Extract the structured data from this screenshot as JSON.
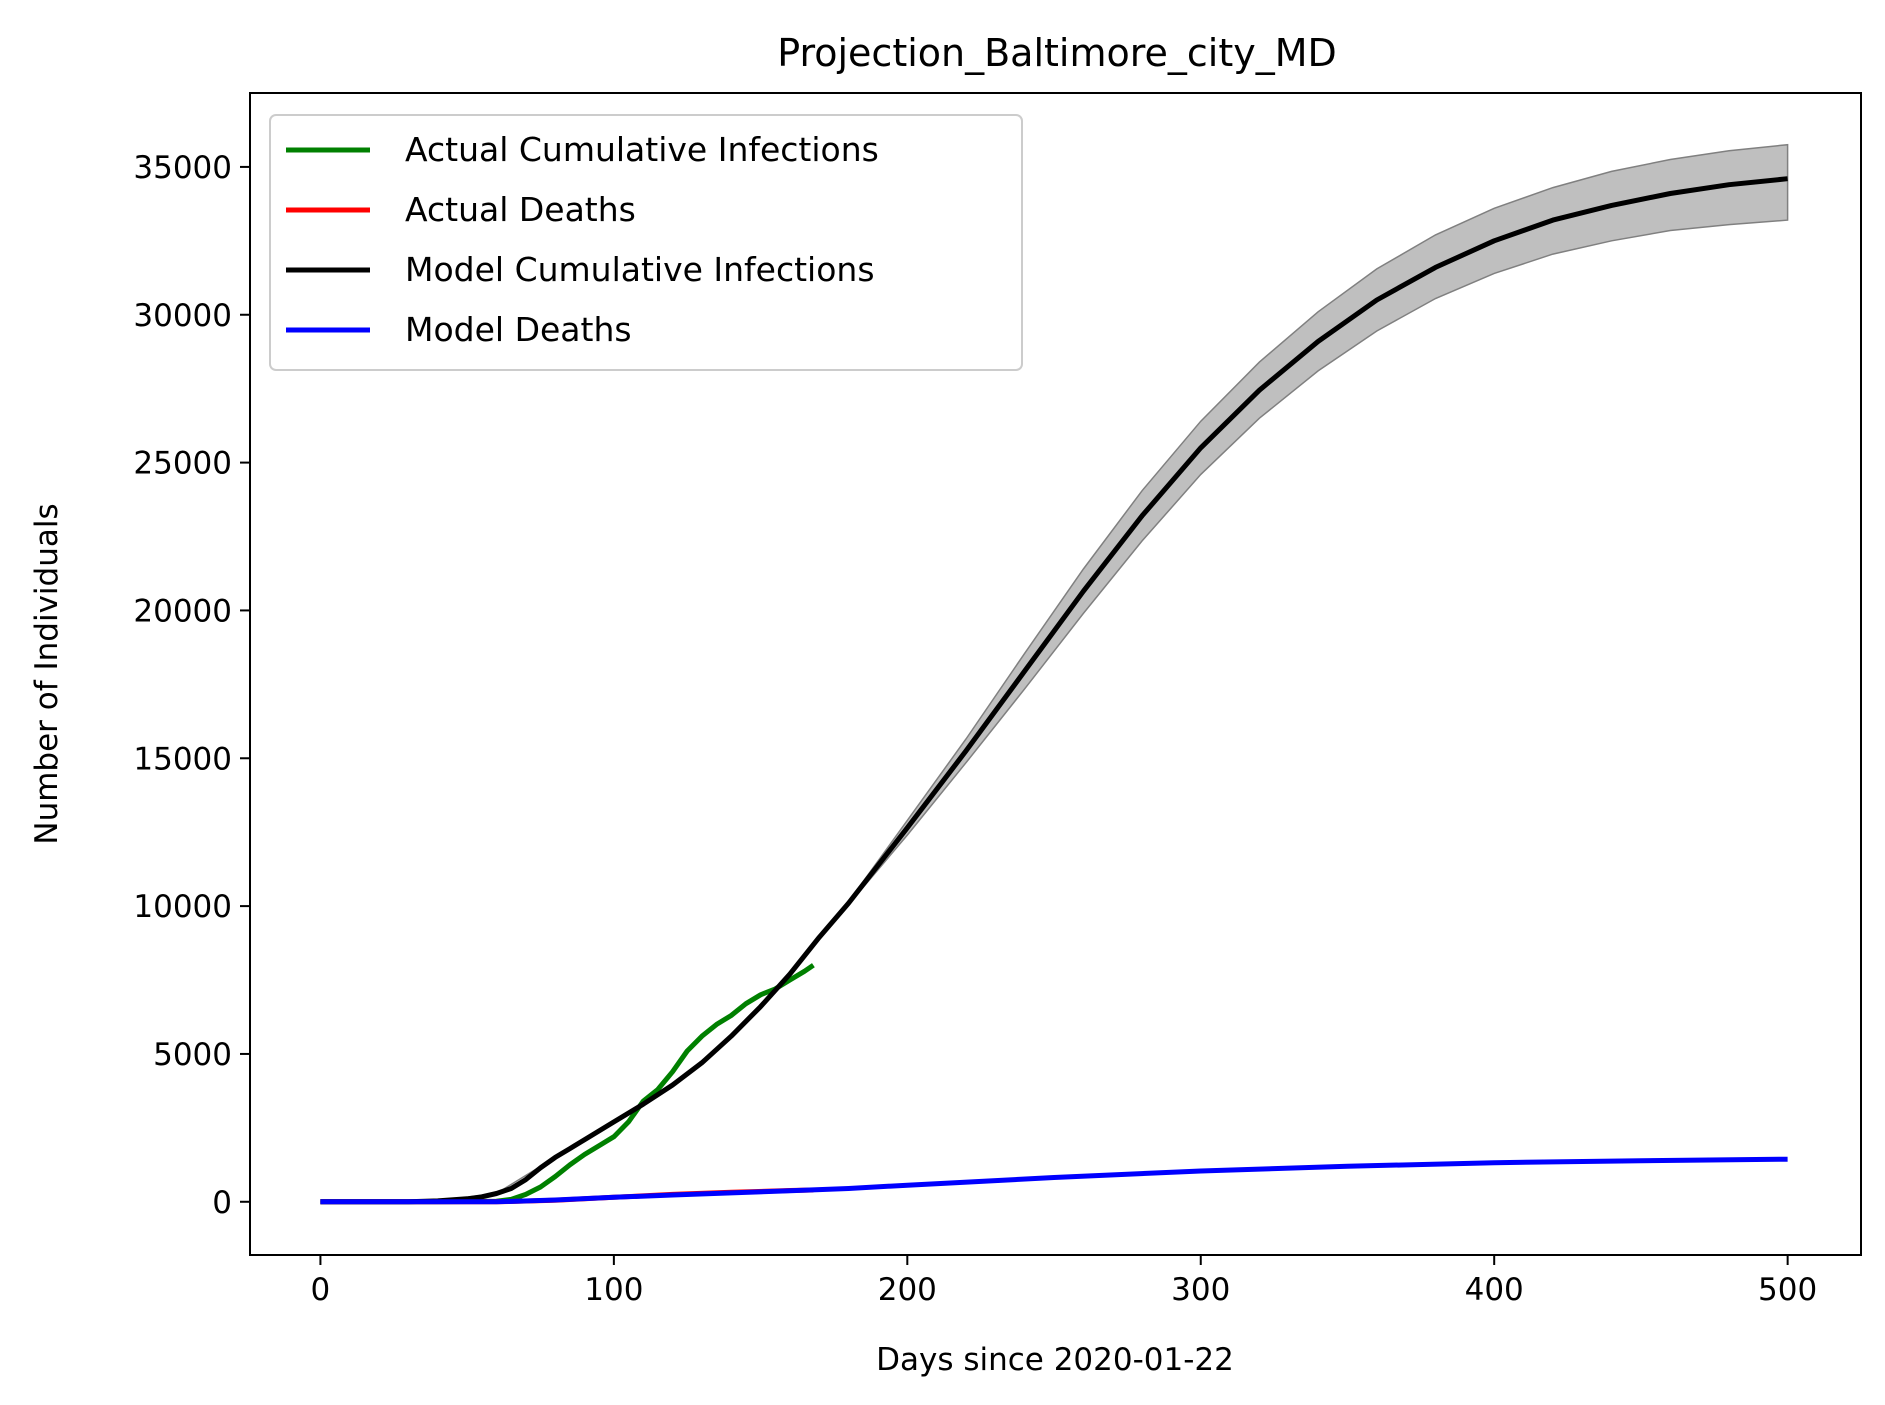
{
  "chart_data": {
    "type": "line",
    "title": "Projection_Baltimore_city_MD",
    "xlabel": "Days since 2020-01-22",
    "ylabel": "Number of Individuals",
    "xlim": [
      -24,
      525
    ],
    "ylim": [
      -1800,
      37500
    ],
    "xticks": [
      0,
      100,
      200,
      300,
      400,
      500
    ],
    "yticks": [
      0,
      5000,
      10000,
      15000,
      20000,
      25000,
      30000,
      35000
    ],
    "grid": false,
    "legend_position": "top-left",
    "series": [
      {
        "name": "Actual Cumulative Infections",
        "color": "#008000",
        "x": [
          0,
          40,
          60,
          65,
          70,
          75,
          80,
          85,
          90,
          95,
          100,
          105,
          110,
          115,
          120,
          125,
          130,
          135,
          140,
          145,
          150,
          155,
          160,
          165,
          168
        ],
        "y": [
          0,
          0,
          20,
          80,
          250,
          500,
          850,
          1250,
          1600,
          1900,
          2200,
          2700,
          3400,
          3800,
          4400,
          5100,
          5600,
          6000,
          6300,
          6700,
          7000,
          7200,
          7500,
          7800,
          8000
        ]
      },
      {
        "name": "Actual Deaths",
        "color": "#ff0000",
        "x": [
          0,
          60,
          80,
          100,
          120,
          140,
          160,
          168
        ],
        "y": [
          0,
          0,
          50,
          150,
          250,
          320,
          380,
          400
        ]
      },
      {
        "name": "Model Cumulative Infections",
        "color": "#000000",
        "x": [
          0,
          30,
          40,
          50,
          55,
          60,
          65,
          70,
          75,
          80,
          85,
          90,
          100,
          110,
          120,
          130,
          140,
          150,
          160,
          170,
          180,
          200,
          220,
          240,
          260,
          280,
          300,
          320,
          340,
          360,
          380,
          400,
          420,
          440,
          460,
          480,
          500
        ],
        "y": [
          0,
          0,
          30,
          100,
          170,
          280,
          450,
          750,
          1150,
          1500,
          1800,
          2100,
          2700,
          3300,
          3950,
          4700,
          5600,
          6600,
          7700,
          8950,
          10100,
          12650,
          15250,
          17950,
          20650,
          23200,
          25500,
          27450,
          29100,
          30500,
          31600,
          32500,
          33200,
          33700,
          34100,
          34400,
          34600
        ]
      },
      {
        "name": "Model Deaths",
        "color": "#0000ff",
        "x": [
          0,
          60,
          80,
          100,
          120,
          140,
          160,
          180,
          200,
          250,
          300,
          350,
          400,
          450,
          500
        ],
        "y": [
          0,
          0,
          60,
          150,
          230,
          300,
          370,
          450,
          560,
          820,
          1040,
          1200,
          1320,
          1390,
          1440
        ]
      }
    ],
    "confidence_band": {
      "color": "#808080",
      "x": [
        0,
        40,
        60,
        80,
        100,
        120,
        140,
        160,
        180,
        200,
        220,
        240,
        260,
        280,
        300,
        320,
        340,
        360,
        380,
        400,
        420,
        440,
        460,
        480,
        500
      ],
      "lower": [
        0,
        30,
        280,
        1500,
        2700,
        3950,
        5600,
        7700,
        10050,
        12400,
        14850,
        17350,
        19900,
        22350,
        24600,
        26500,
        28100,
        29450,
        30550,
        31400,
        32050,
        32500,
        32850,
        33050,
        33200
      ],
      "upper": [
        0,
        30,
        280,
        1500,
        2700,
        3950,
        5600,
        7700,
        10150,
        12900,
        15650,
        18550,
        21400,
        24050,
        26400,
        28400,
        30100,
        31550,
        32700,
        33600,
        34300,
        34850,
        35250,
        35550,
        35750
      ]
    }
  }
}
